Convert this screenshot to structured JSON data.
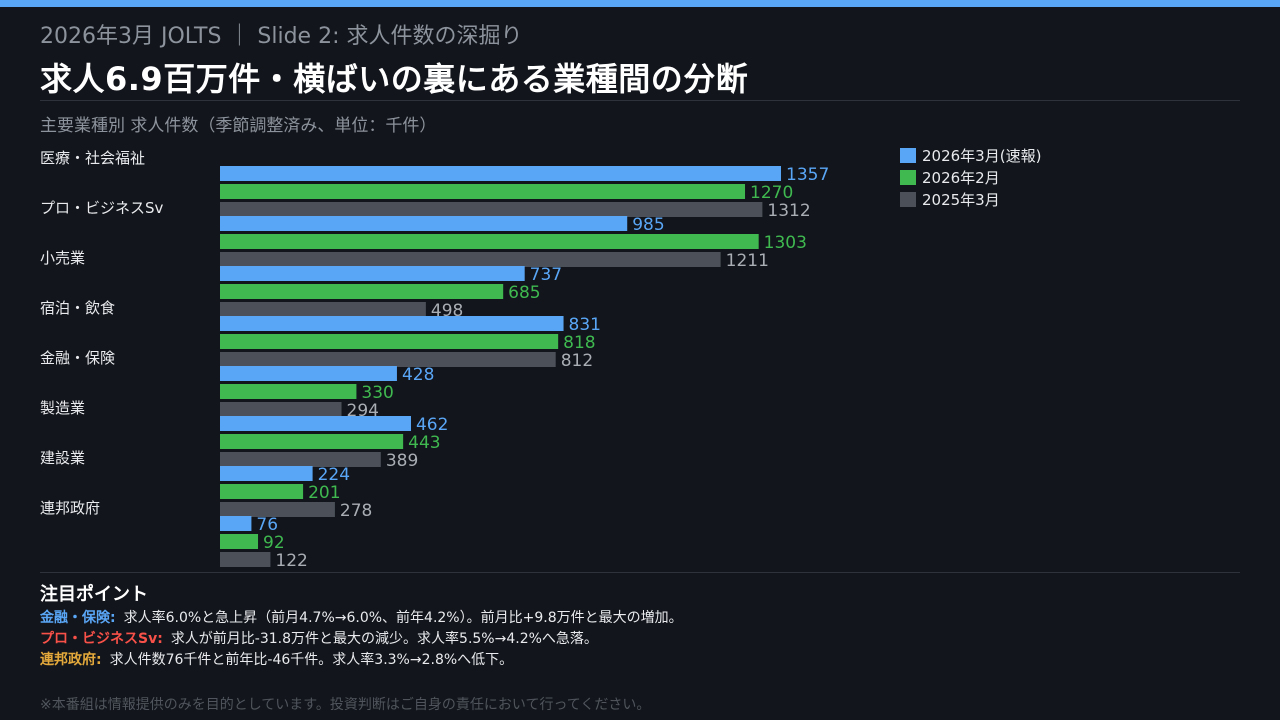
{
  "header": {
    "subtitle": "2026年3月 JOLTS ｜ Slide 2: 求人件数の深掘り",
    "title": "求人6.9百万件・横ばいの裏にある業種間の分断"
  },
  "chart_caption": "主要業種別 求人件数（季節調整済み、単位：千件）",
  "chart_data": {
    "type": "bar",
    "orientation": "horizontal",
    "title": "主要業種別 求人件数（季節調整済み、単位：千件）",
    "unit": "千件",
    "categories": [
      "医療・社会福祉",
      "プロ・ビジネスSv",
      "小売業",
      "宿泊・飲食",
      "金融・保険",
      "製造業",
      "建設業",
      "連邦政府"
    ],
    "series": [
      {
        "name": "2026年3月(速報)",
        "color": "#5aa6f6",
        "values": [
          1357,
          985,
          737,
          831,
          428,
          462,
          224,
          76
        ]
      },
      {
        "name": "2026年2月",
        "color": "#3fb950",
        "values": [
          1270,
          1303,
          685,
          818,
          330,
          443,
          201,
          92
        ]
      },
      {
        "name": "2025年3月",
        "color": "#4b5059",
        "values": [
          1312,
          1211,
          498,
          812,
          294,
          389,
          278,
          122
        ]
      }
    ],
    "xlim": [
      0,
      1460
    ],
    "grid": false,
    "legend_position": "top-right",
    "data_labels": true
  },
  "notes": {
    "title": "注目ポイント",
    "items": [
      {
        "label": "金融・保険:",
        "label_color": "#5aa6f6",
        "text": "求人率6.0%と急上昇（前月4.7%→6.0%、前年4.2%）。前月比+9.8万件と最大の増加。"
      },
      {
        "label": "プロ・ビジネスSv:",
        "label_color": "#f85149",
        "text": "求人が前月比-31.8万件と最大の減少。求人率5.5%→4.2%へ急落。"
      },
      {
        "label": "連邦政府:",
        "label_color": "#e3a83b",
        "text": "求人件数76千件と前年比-46千件。求人率3.3%→2.8%へ低下。"
      }
    ]
  },
  "disclaimer": "※本番組は情報提供のみを目的としています。投資判断はご自身の責任において行ってください。"
}
